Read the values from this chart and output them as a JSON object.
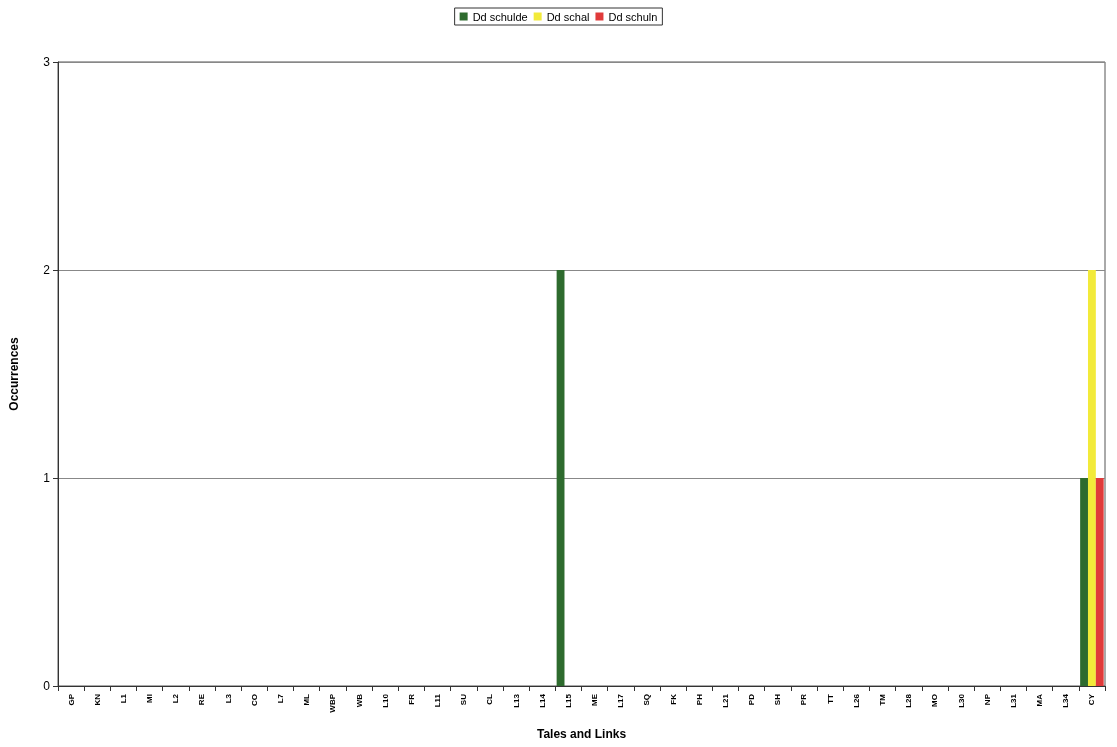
{
  "chart_data": {
    "type": "bar",
    "xlabel": "Tales and Links",
    "ylabel": "Occurrences",
    "categories": [
      "GP",
      "KN",
      "L1",
      "MI",
      "L2",
      "RE",
      "L3",
      "CO",
      "L7",
      "ML",
      "WBP",
      "WB",
      "L10",
      "FR",
      "L11",
      "SU",
      "CL",
      "L13",
      "L14",
      "L15",
      "ME",
      "L17",
      "SQ",
      "FK",
      "PH",
      "L21",
      "PD",
      "SH",
      "PR",
      "TT",
      "L26",
      "TM",
      "L28",
      "MO",
      "L30",
      "NP",
      "L31",
      "MA",
      "L34",
      "CY"
    ],
    "series": [
      {
        "name": "Dd schulde",
        "color": "#2e6b2e",
        "values": [
          0,
          0,
          0,
          0,
          0,
          0,
          0,
          0,
          0,
          0,
          0,
          0,
          0,
          0,
          0,
          0,
          0,
          0,
          0,
          2,
          0,
          0,
          0,
          0,
          0,
          0,
          0,
          0,
          0,
          0,
          0,
          0,
          0,
          0,
          0,
          0,
          0,
          0,
          0,
          1
        ]
      },
      {
        "name": "Dd schal",
        "color": "#f2ea3a",
        "values": [
          0,
          0,
          0,
          0,
          0,
          0,
          0,
          0,
          0,
          0,
          0,
          0,
          0,
          0,
          0,
          0,
          0,
          0,
          0,
          0,
          0,
          0,
          0,
          0,
          0,
          0,
          0,
          0,
          0,
          0,
          0,
          0,
          0,
          0,
          0,
          0,
          0,
          0,
          0,
          2
        ]
      },
      {
        "name": "Dd schuln",
        "color": "#e03a3a",
        "values": [
          0,
          0,
          0,
          0,
          0,
          0,
          0,
          0,
          0,
          0,
          0,
          0,
          0,
          0,
          0,
          0,
          0,
          0,
          0,
          0,
          0,
          0,
          0,
          0,
          0,
          0,
          0,
          0,
          0,
          0,
          0,
          0,
          0,
          0,
          0,
          0,
          0,
          0,
          0,
          1
        ]
      }
    ],
    "ylim": [
      0,
      3
    ],
    "yticks": [
      0,
      1,
      2,
      3
    ],
    "grid": "y",
    "legend": "top"
  }
}
